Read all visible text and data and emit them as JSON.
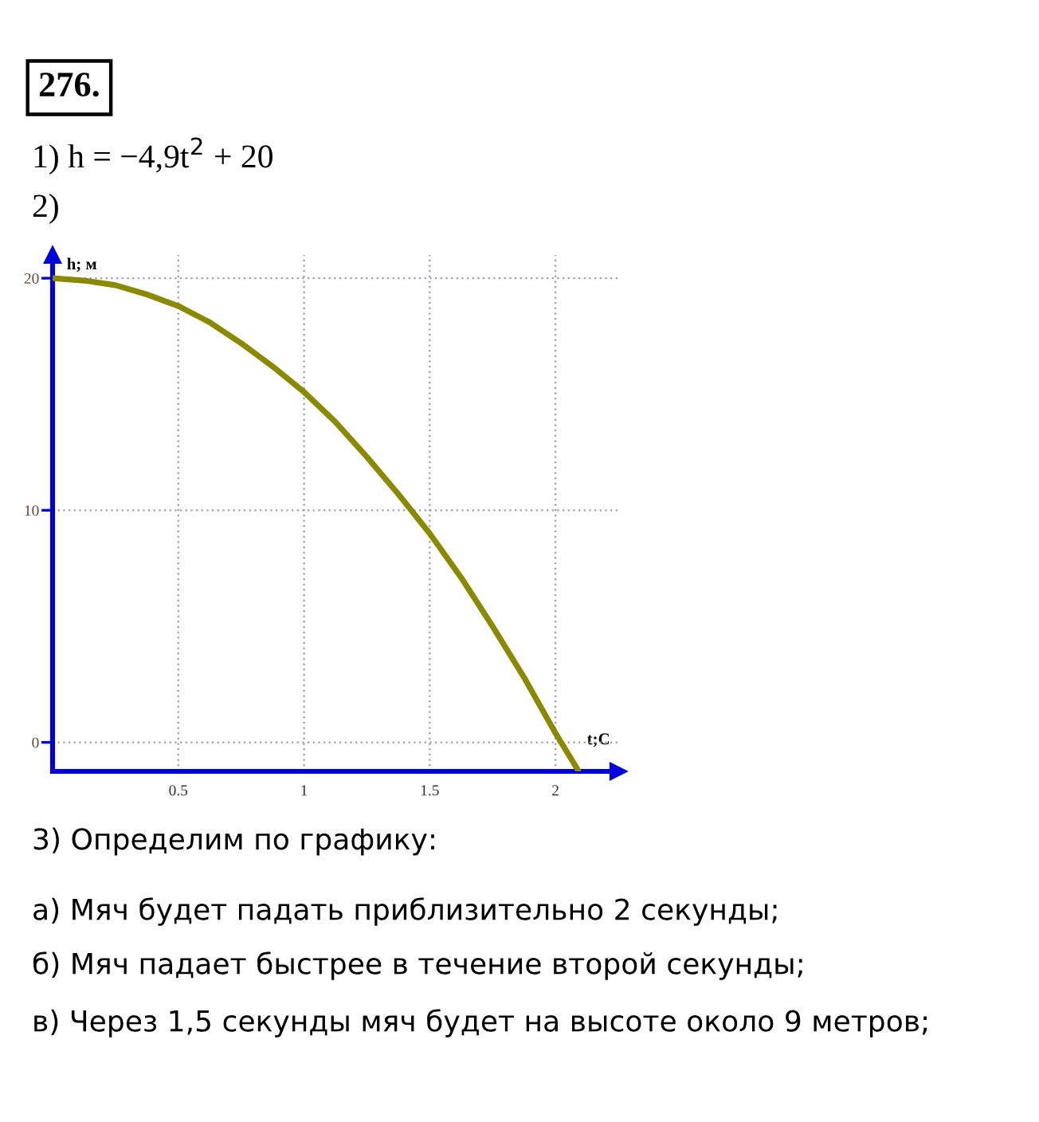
{
  "chart_data": {
    "type": "line",
    "title": "276.",
    "annotations": [
      "1) h = −4,9t$^{2}$ + 20",
      "2)",
      "3) Определим по графику:",
      "а) Мяч будет падать приблизительно 2 секунды;",
      "б) Мяч падает быстрее в течение второй секунды;",
      "в) Через 1,5 секунды мяч будет на высоте около 9 метров;"
    ],
    "xlabel": "t;C",
    "ylabel": "h; м",
    "x": [
      0,
      0.125,
      0.25,
      0.375,
      0.5,
      0.625,
      0.75,
      0.875,
      1.0,
      1.125,
      1.25,
      1.375,
      1.5,
      1.625,
      1.75,
      1.875,
      2.0,
      2.09
    ],
    "series": [
      {
        "color": "#8a8a00",
        "values": [
          20,
          19.9,
          19.7,
          19.3,
          18.8,
          18.1,
          17.2,
          16.2,
          15.1,
          13.8,
          12.3,
          10.7,
          9.0,
          7.1,
          5.0,
          2.8,
          0.4,
          -1.2
        ]
      }
    ],
    "xlim": [
      0,
      2.25
    ],
    "ylim": [
      -1.25,
      21
    ],
    "xticks": [
      0.5,
      1,
      1.5,
      2
    ],
    "yticks": [
      0,
      10,
      20
    ],
    "grid": true,
    "marker": "none",
    "line_style": "solid"
  }
}
